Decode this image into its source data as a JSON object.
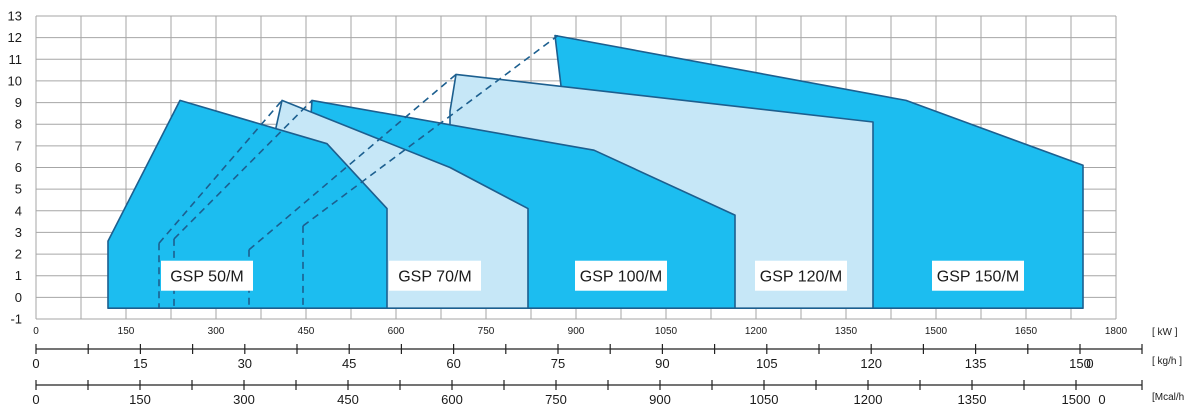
{
  "colors": {
    "dark_fill": "#1cbdf0",
    "light_fill": "#c6e7f7",
    "outline": "#1c5f8f",
    "grid": "#a6a6a6",
    "label_bg": "#ffffff"
  },
  "chart_data": {
    "type": "area",
    "title": "",
    "xlabel": "",
    "ylabel": "",
    "xlim": [
      0,
      1800
    ],
    "ylim": [
      -1,
      13
    ],
    "grid": true,
    "legend": "none",
    "y_ticks": [
      "-1",
      "0",
      "1",
      "2",
      "3",
      "4",
      "5",
      "6",
      "7",
      "8",
      "9",
      "10",
      "11",
      "12",
      "13"
    ],
    "x_axis_kw": {
      "unit": "[ kW ]",
      "ticks": [
        {
          "v": 0,
          "label": "0"
        },
        {
          "v": 150,
          "label": "150"
        },
        {
          "v": 300,
          "label": "300"
        },
        {
          "v": 450,
          "label": "450"
        },
        {
          "v": 600,
          "label": "600"
        },
        {
          "v": 750,
          "label": "750"
        },
        {
          "v": 900,
          "label": "900"
        },
        {
          "v": 1050,
          "label": "1050"
        },
        {
          "v": 1200,
          "label": "1200"
        },
        {
          "v": 1350,
          "label": "1350"
        },
        {
          "v": 1500,
          "label": "1500"
        },
        {
          "v": 1650,
          "label": "1650"
        },
        {
          "v": 1800,
          "label": "1800"
        }
      ]
    },
    "secondary_axes": [
      {
        "unit": "[ kg/h ]",
        "ticks": [
          {
            "v": 0,
            "label": "0"
          },
          {
            "v": 15,
            "label": "15"
          },
          {
            "v": 30,
            "label": "30"
          },
          {
            "v": 45,
            "label": "45"
          },
          {
            "v": 60,
            "label": "60"
          },
          {
            "v": 75,
            "label": "75"
          },
          {
            "v": 90,
            "label": "90"
          },
          {
            "v": 105,
            "label": "105"
          },
          {
            "v": 120,
            "label": "120"
          },
          {
            "v": 135,
            "label": "135"
          },
          {
            "v": 150,
            "label": "150"
          }
        ],
        "extra_label": "0"
      },
      {
        "unit": "[Mcal/h",
        "ticks": [
          {
            "v": 0,
            "label": "0"
          },
          {
            "v": 150,
            "label": "150"
          },
          {
            "v": 300,
            "label": "300"
          },
          {
            "v": 450,
            "label": "450"
          },
          {
            "v": 600,
            "label": "600"
          },
          {
            "v": 750,
            "label": "750"
          },
          {
            "v": 900,
            "label": "900"
          },
          {
            "v": 1050,
            "label": "1050"
          },
          {
            "v": 1200,
            "label": "1200"
          },
          {
            "v": 1350,
            "label": "1350"
          },
          {
            "v": 1500,
            "label": "1500"
          }
        ],
        "extra_label": "0"
      }
    ],
    "series": [
      {
        "name": "GSP 150/M",
        "fill": "dark",
        "points": [
          [
            865,
            12.1
          ],
          [
            1450,
            9.1
          ],
          [
            1745,
            6.1
          ],
          [
            1745,
            -0.5
          ],
          [
            1135,
            -0.5
          ],
          [
            1135,
            0.6
          ],
          [
            880,
            0.6
          ],
          [
            880,
            8.6
          ]
        ],
        "dashed": []
      },
      {
        "name": "GSP 120/M",
        "fill": "light",
        "points": [
          [
            700,
            10.3
          ],
          [
            1395,
            8.1
          ],
          [
            1395,
            -0.5
          ],
          [
            905,
            -0.5
          ],
          [
            905,
            0.6
          ],
          [
            690,
            0.6
          ],
          [
            690,
            8.6
          ]
        ],
        "dashed": [
          [
            [
              445,
              3.3
            ],
            [
              445,
              -0.5
            ]
          ],
          [
            [
              445,
              3.3
            ],
            [
              870,
              12.1
            ]
          ]
        ]
      },
      {
        "name": "GSP 100/M",
        "fill": "dark",
        "points": [
          [
            460,
            9.1
          ],
          [
            930,
            6.8
          ],
          [
            1165,
            3.8
          ],
          [
            1165,
            -0.5
          ],
          [
            445,
            -0.5
          ],
          [
            445,
            3.3
          ]
        ],
        "dashed": [
          [
            [
              355,
              2.2
            ],
            [
              355,
              -0.5
            ]
          ],
          [
            [
              355,
              2.2
            ],
            [
              700,
              10.3
            ]
          ]
        ]
      },
      {
        "name": "GSP 70/M",
        "fill": "light",
        "points": [
          [
            410,
            9.1
          ],
          [
            690,
            6.0
          ],
          [
            820,
            4.1
          ],
          [
            820,
            -0.5
          ],
          [
            355,
            -0.5
          ],
          [
            355,
            2.2
          ]
        ],
        "dashed": [
          [
            [
              230,
              2.7
            ],
            [
              230,
              -0.5
            ]
          ],
          [
            [
              230,
              2.7
            ],
            [
              460,
              9.1
            ]
          ]
        ]
      },
      {
        "name": "GSP 50/M",
        "fill": "dark",
        "points": [
          [
            120,
            2.6
          ],
          [
            240,
            9.1
          ],
          [
            485,
            7.1
          ],
          [
            585,
            4.1
          ],
          [
            585,
            -0.5
          ],
          [
            120,
            -0.5
          ]
        ],
        "dashed": [
          [
            [
              205,
              2.5
            ],
            [
              205,
              -0.5
            ]
          ],
          [
            [
              205,
              2.5
            ],
            [
              410,
              9.1
            ]
          ]
        ]
      }
    ],
    "labels": [
      {
        "text": "GSP 50/M",
        "x": 285
      },
      {
        "text": "GSP 70/M",
        "x": 665
      },
      {
        "text": "GSP 100/M",
        "x": 975
      },
      {
        "text": "GSP 120/M",
        "x": 1275
      },
      {
        "text": "GSP 150/M",
        "x": 1570
      }
    ]
  }
}
